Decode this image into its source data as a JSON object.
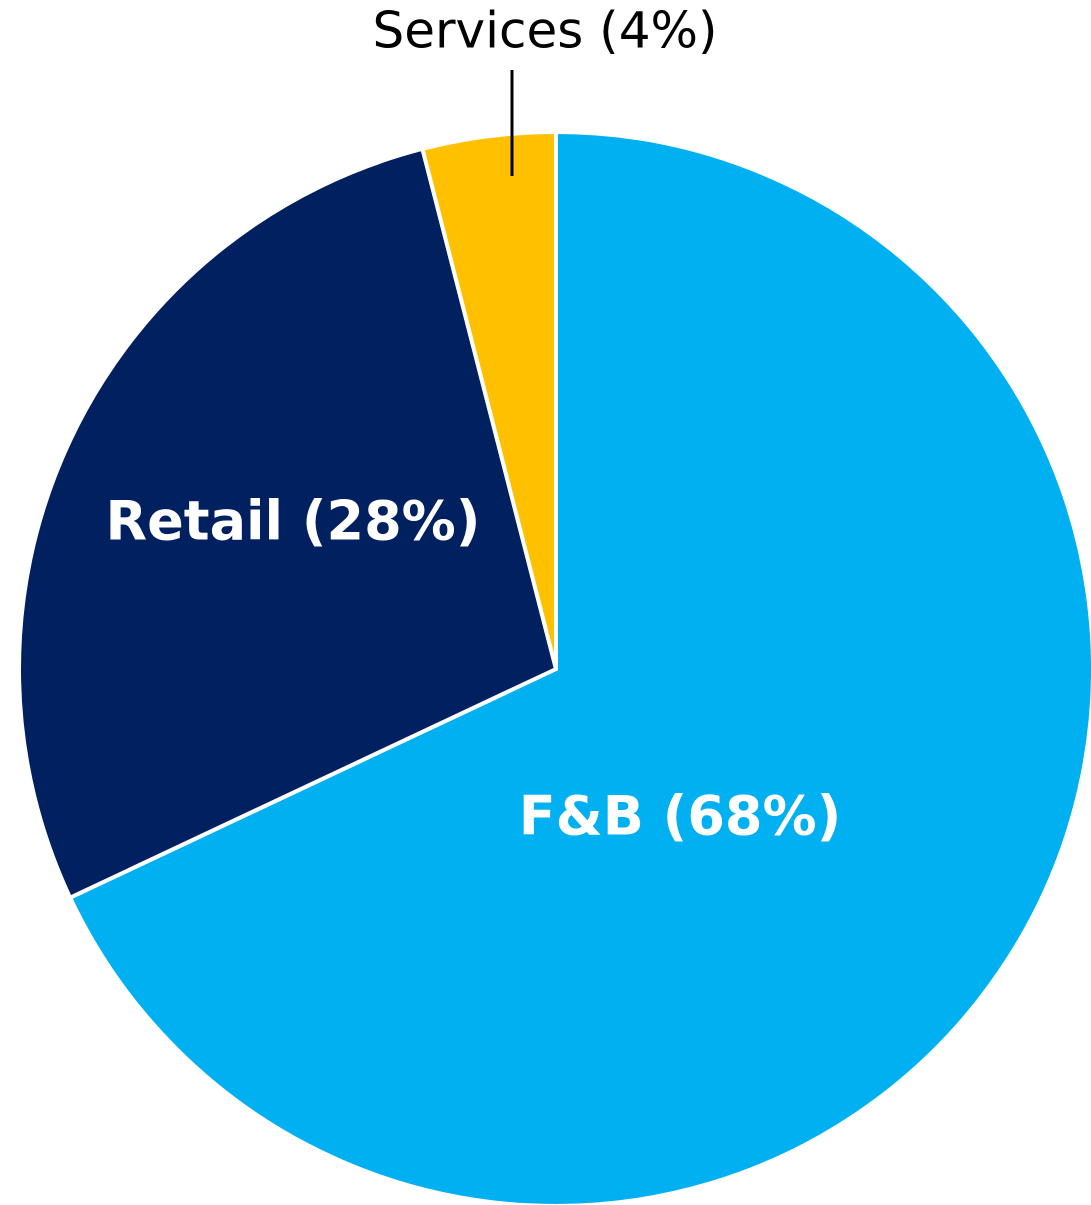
{
  "chart_data": {
    "type": "pie",
    "categories": [
      "F&B (68%)",
      "Retail (28%)",
      "Services (4%)"
    ],
    "values": [
      68,
      28,
      4
    ],
    "colors": [
      "#00b0f0",
      "#002060",
      "#ffc000"
    ]
  }
}
